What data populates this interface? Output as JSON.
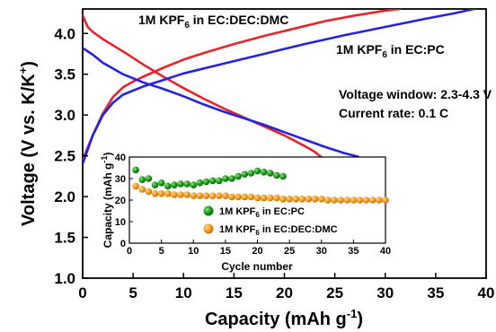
{
  "chart_data": [
    {
      "type": "line",
      "xlabel": "Capacity (mAh g⁻¹)",
      "ylabel": "Voltage (V vs. K/K⁺)",
      "xlim": [
        0,
        40
      ],
      "ylim": [
        1.0,
        4.3
      ],
      "xticks": [
        "0",
        "5",
        "10",
        "15",
        "20",
        "25",
        "30",
        "35",
        "40"
      ],
      "yticks": [
        "1.0",
        "1.5",
        "2.0",
        "2.5",
        "3.0",
        "3.5",
        "4.0"
      ],
      "annotations": [
        "Voltage window: 2.3-4.3 V",
        "Current rate: 0.1 C"
      ],
      "series": [
        {
          "name": "1M KPF₆ in EC:DEC:DMC",
          "color": "#e8242a",
          "charge": [
            [
              0,
              2.45
            ],
            [
              0.5,
              2.6
            ],
            [
              1,
              2.75
            ],
            [
              2,
              3.02
            ],
            [
              3,
              3.22
            ],
            [
              4,
              3.34
            ],
            [
              5,
              3.41
            ],
            [
              6,
              3.47
            ],
            [
              8,
              3.58
            ],
            [
              10,
              3.68
            ],
            [
              12,
              3.76
            ],
            [
              15,
              3.87
            ],
            [
              18,
              3.97
            ],
            [
              21,
              4.06
            ],
            [
              24,
              4.15
            ],
            [
              27,
              4.22
            ],
            [
              30,
              4.28
            ],
            [
              31.5,
              4.3
            ]
          ],
          "discharge": [
            [
              0,
              4.22
            ],
            [
              0.5,
              4.08
            ],
            [
              1,
              4.02
            ],
            [
              2,
              3.93
            ],
            [
              4,
              3.78
            ],
            [
              6,
              3.62
            ],
            [
              8,
              3.47
            ],
            [
              10,
              3.33
            ],
            [
              12,
              3.2
            ],
            [
              14,
              3.08
            ],
            [
              16,
              2.97
            ],
            [
              18,
              2.86
            ],
            [
              20,
              2.75
            ],
            [
              22,
              2.62
            ],
            [
              23,
              2.55
            ],
            [
              24,
              2.45
            ]
          ]
        },
        {
          "name": "1M KPF₆ in EC:PC",
          "color": "#2323e0",
          "charge": [
            [
              0,
              2.4
            ],
            [
              1,
              2.75
            ],
            [
              2,
              3.0
            ],
            [
              3,
              3.15
            ],
            [
              4,
              3.25
            ],
            [
              6,
              3.35
            ],
            [
              8,
              3.43
            ],
            [
              10,
              3.51
            ],
            [
              14,
              3.63
            ],
            [
              18,
              3.75
            ],
            [
              22,
              3.87
            ],
            [
              26,
              3.98
            ],
            [
              30,
              4.08
            ],
            [
              34,
              4.18
            ],
            [
              37,
              4.25
            ],
            [
              38.8,
              4.3
            ]
          ],
          "discharge": [
            [
              0,
              3.82
            ],
            [
              1,
              3.74
            ],
            [
              2,
              3.64
            ],
            [
              4,
              3.5
            ],
            [
              6,
              3.4
            ],
            [
              8,
              3.32
            ],
            [
              10,
              3.23
            ],
            [
              12,
              3.13
            ],
            [
              14,
              3.04
            ],
            [
              16,
              2.96
            ],
            [
              18,
              2.88
            ],
            [
              20,
              2.79
            ],
            [
              22,
              2.7
            ],
            [
              24,
              2.61
            ],
            [
              26,
              2.53
            ],
            [
              27.3,
              2.49
            ]
          ]
        }
      ]
    },
    {
      "type": "scatter",
      "xlabel": "Cycle number",
      "ylabel": "Capacity (mAh g⁻¹)",
      "xlim": [
        0,
        40
      ],
      "ylim": [
        0,
        40
      ],
      "xticks": [
        "0",
        "5",
        "10",
        "15",
        "20",
        "25",
        "30",
        "35",
        "40"
      ],
      "yticks": [
        "0",
        "10",
        "20",
        "30",
        "40"
      ],
      "series": [
        {
          "name": "1M KPF₆ in EC:PC",
          "color": "#1a9a1a",
          "x": [
            1,
            2,
            3,
            4,
            5,
            6,
            7,
            8,
            9,
            10,
            11,
            12,
            13,
            14,
            15,
            16,
            17,
            18,
            19,
            20,
            21,
            22,
            23,
            24
          ],
          "values": [
            34,
            29.5,
            30,
            27,
            28,
            26.5,
            27,
            27.5,
            27.5,
            27,
            28,
            28.5,
            29,
            29,
            30,
            30,
            31,
            32,
            32.5,
            33.5,
            33,
            32.5,
            31.5,
            31
          ]
        },
        {
          "name": "1M KPF₆ in EC:DEC:DMC",
          "color": "#f39a1c",
          "x": [
            1,
            2,
            3,
            4,
            5,
            6,
            7,
            8,
            9,
            10,
            11,
            12,
            13,
            14,
            15,
            16,
            17,
            18,
            19,
            20,
            21,
            22,
            23,
            24,
            25,
            26,
            27,
            28,
            29,
            30,
            31,
            32,
            33,
            34,
            35,
            36,
            37,
            38,
            39,
            40
          ],
          "values": [
            26.5,
            25,
            24,
            23,
            23,
            23,
            22.5,
            22.5,
            22.5,
            22,
            22,
            22,
            22,
            22,
            22,
            21.5,
            21.5,
            21.5,
            21.5,
            21,
            21,
            21,
            21,
            20.5,
            20.5,
            20.5,
            20.5,
            20.5,
            20.5,
            20.5,
            20,
            20,
            20,
            20,
            20,
            20,
            20,
            20,
            20,
            20
          ]
        }
      ]
    }
  ]
}
